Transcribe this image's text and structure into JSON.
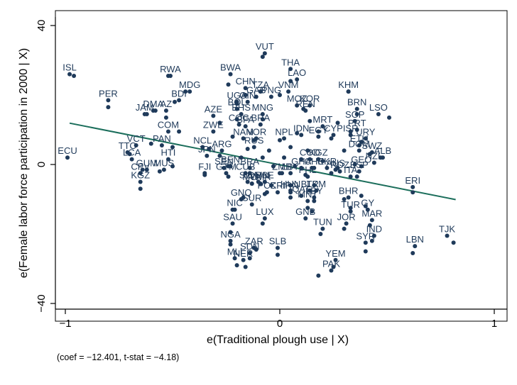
{
  "chart_data": {
    "type": "scatter",
    "xlabel": "e(Traditional plough use | X)",
    "ylabel": "e(Female labor force participation in 2000 | X)",
    "xlim": [
      -1.03,
      1.03
    ],
    "ylim": [
      -41,
      41
    ],
    "x_ticks": [
      {
        "v": -1,
        "label": "−1"
      },
      {
        "v": 0,
        "label": "0"
      },
      {
        "v": 1,
        "label": "1"
      }
    ],
    "y_ticks": [
      {
        "v": 40,
        "label": "40"
      },
      {
        "v": 0,
        "label": "0"
      },
      {
        "v": -40,
        "label": "−40"
      }
    ],
    "grid": false,
    "note": "(coef = −12.401, t-stat = −4.18)",
    "fit_line": {
      "x": [
        -0.98,
        0.82
      ],
      "y": [
        11.9,
        -10.1
      ]
    },
    "colors": {
      "points": "#1f3a5a",
      "fit": "#1b6e5b",
      "frame": "#000000"
    },
    "labeled_points": [
      {
        "code": "VUT",
        "x": -0.07,
        "y": 32
      },
      {
        "code": "THA",
        "x": 0.05,
        "y": 27.5
      },
      {
        "code": "LAO",
        "x": 0.08,
        "y": 24.5
      },
      {
        "code": "ISL",
        "x": -0.98,
        "y": 26
      },
      {
        "code": "RWA",
        "x": -0.51,
        "y": 25.5
      },
      {
        "code": "BWA",
        "x": -0.23,
        "y": 26
      },
      {
        "code": "KHM",
        "x": 0.32,
        "y": 21
      },
      {
        "code": "CHN",
        "x": -0.16,
        "y": 22
      },
      {
        "code": "TZA",
        "x": -0.09,
        "y": 21
      },
      {
        "code": "VNM",
        "x": 0.04,
        "y": 21
      },
      {
        "code": "MDG",
        "x": -0.42,
        "y": 21
      },
      {
        "code": "GAB",
        "x": -0.11,
        "y": 19.5
      },
      {
        "code": "PNG",
        "x": -0.04,
        "y": 19.5
      },
      {
        "code": "BDI",
        "x": -0.47,
        "y": 18.5
      },
      {
        "code": "PER",
        "x": -0.8,
        "y": 18.5
      },
      {
        "code": "UGA",
        "x": -0.2,
        "y": 18
      },
      {
        "code": "GIN",
        "x": -0.15,
        "y": 18
      },
      {
        "code": "MOZ",
        "x": 0.08,
        "y": 17
      },
      {
        "code": "KOR",
        "x": 0.14,
        "y": 17
      },
      {
        "code": "BRN",
        "x": 0.36,
        "y": 16
      },
      {
        "code": "DMA",
        "x": -0.59,
        "y": 15.5
      },
      {
        "code": "AZ",
        "x": -0.53,
        "y": 15.5
      },
      {
        "code": "JAM",
        "x": -0.63,
        "y": 14.5
      },
      {
        "code": "BOL",
        "x": -0.2,
        "y": 16
      },
      {
        "code": "BHS",
        "x": -0.18,
        "y": 14.5
      },
      {
        "code": "MNG",
        "x": -0.08,
        "y": 14.5
      },
      {
        "code": "REN",
        "x": 0.12,
        "y": 15.5
      },
      {
        "code": "AZE",
        "x": -0.31,
        "y": 14
      },
      {
        "code": "LSO",
        "x": 0.46,
        "y": 14.5
      },
      {
        "code": "SGP",
        "x": 0.35,
        "y": 12.5
      },
      {
        "code": "COG",
        "x": -0.19,
        "y": 11.5
      },
      {
        "code": "BRA",
        "x": -0.09,
        "y": 11.5
      },
      {
        "code": "MRT",
        "x": 0.2,
        "y": 11
      },
      {
        "code": "BFA",
        "x": -0.16,
        "y": 11
      },
      {
        "code": "ZWE",
        "x": -0.31,
        "y": 9.5
      },
      {
        "code": "PRT",
        "x": 0.36,
        "y": 10
      },
      {
        "code": "COM",
        "x": -0.52,
        "y": 9.5
      },
      {
        "code": "IDN",
        "x": 0.1,
        "y": 8.5
      },
      {
        "code": "EGY",
        "x": 0.18,
        "y": 8
      },
      {
        "code": "CYP",
        "x": 0.25,
        "y": 8.5
      },
      {
        "code": "ISR",
        "x": 0.33,
        "y": 8.5
      },
      {
        "code": "URY",
        "x": 0.4,
        "y": 7.5
      },
      {
        "code": "NAM",
        "x": -0.17,
        "y": 7.5
      },
      {
        "code": "NOR",
        "x": -0.11,
        "y": 7.5
      },
      {
        "code": "NPL",
        "x": 0.02,
        "y": 7.5
      },
      {
        "code": "ETH",
        "x": 0.37,
        "y": 5.5
      },
      {
        "code": "VCT",
        "x": -0.67,
        "y": 5.5
      },
      {
        "code": "PAN",
        "x": -0.55,
        "y": 5.5
      },
      {
        "code": "NCL",
        "x": -0.36,
        "y": 5
      },
      {
        "code": "RUS",
        "x": -0.12,
        "y": 5
      },
      {
        "code": "TTO",
        "x": -0.71,
        "y": 3.5
      },
      {
        "code": "ARG",
        "x": -0.27,
        "y": 4
      },
      {
        "code": "DOM",
        "x": 0.37,
        "y": 4
      },
      {
        "code": "SWZ",
        "x": 0.43,
        "y": 3.5
      },
      {
        "code": "JPN",
        "x": -0.34,
        "y": 2.5
      },
      {
        "code": "ALB",
        "x": 0.48,
        "y": 2
      },
      {
        "code": "ECU",
        "x": -0.99,
        "y": 2
      },
      {
        "code": "LCA",
        "x": -0.69,
        "y": 1.5
      },
      {
        "code": "HTI",
        "x": -0.52,
        "y": 1.5
      },
      {
        "code": "COD",
        "x": 0.14,
        "y": 1.5
      },
      {
        "code": "KGZ",
        "x": 0.18,
        "y": 1.5
      },
      {
        "code": "NZL",
        "x": 0.44,
        "y": 0.5
      },
      {
        "code": "BEN",
        "x": -0.23,
        "y": -0.5
      },
      {
        "code": "GEO",
        "x": 0.38,
        "y": -0.5
      },
      {
        "code": "BRA",
        "x": -0.14,
        "y": -1
      },
      {
        "code": "SEN",
        "x": -0.26,
        "y": -1
      },
      {
        "code": "GHA",
        "x": 0.1,
        "y": -1
      },
      {
        "code": "CHE",
        "x": 0.16,
        "y": -1
      },
      {
        "code": "UKR",
        "x": 0.22,
        "y": -1
      },
      {
        "code": "GUM",
        "x": -0.62,
        "y": -1.5
      },
      {
        "code": "MUS",
        "x": -0.54,
        "y": -1.5
      },
      {
        "code": "CPV",
        "x": -0.65,
        "y": -2.5
      },
      {
        "code": "AUS",
        "x": 0.26,
        "y": -1.5
      },
      {
        "code": "RDZ",
        "x": 0.28,
        "y": -2
      },
      {
        "code": "ESP",
        "x": 0.37,
        "y": -2
      },
      {
        "code": "CUB",
        "x": -0.16,
        "y": -2.5
      },
      {
        "code": "FJI",
        "x": -0.35,
        "y": -2.5
      },
      {
        "code": "ZMB",
        "x": 0.01,
        "y": -2.5
      },
      {
        "code": "LBY",
        "x": 0.05,
        "y": -2.5
      },
      {
        "code": "PHL",
        "x": 0.13,
        "y": -3.5
      },
      {
        "code": "ITA",
        "x": 0.33,
        "y": -3.5
      },
      {
        "code": "KGZ",
        "x": -0.65,
        "y": -5
      },
      {
        "code": "GTM",
        "x": -0.25,
        "y": -2.5
      },
      {
        "code": "SLV",
        "x": -0.15,
        "y": -5
      },
      {
        "code": "MWI",
        "x": -0.13,
        "y": -5.5
      },
      {
        "code": "CMR",
        "x": -0.09,
        "y": -5.5
      },
      {
        "code": "OMN",
        "x": -0.1,
        "y": -5
      },
      {
        "code": "PSE",
        "x": -0.07,
        "y": -5
      },
      {
        "code": "HUN",
        "x": 0.05,
        "y": -7.5
      },
      {
        "code": "BLR",
        "x": 0.14,
        "y": -7.5
      },
      {
        "code": "TKM",
        "x": 0.17,
        "y": -7.5
      },
      {
        "code": "BHR",
        "x": 0.32,
        "y": -9.5
      },
      {
        "code": "PCK",
        "x": -0.06,
        "y": -8
      },
      {
        "code": "CRI",
        "x": -0.01,
        "y": -8
      },
      {
        "code": "IRN",
        "x": 0.05,
        "y": -8
      },
      {
        "code": "QAT",
        "x": 0.1,
        "y": -9
      },
      {
        "code": "LBY",
        "x": 0.16,
        "y": -9.5
      },
      {
        "code": "GNQ",
        "x": -0.18,
        "y": -10
      },
      {
        "code": "MNT",
        "x": 0.13,
        "y": -10.5
      },
      {
        "code": "SUR",
        "x": -0.13,
        "y": -11.5
      },
      {
        "code": "NIC",
        "x": -0.21,
        "y": -13
      },
      {
        "code": "TUR",
        "x": 0.33,
        "y": -13.5
      },
      {
        "code": "GY",
        "x": 0.41,
        "y": -13
      },
      {
        "code": "LUX",
        "x": -0.07,
        "y": -15.5
      },
      {
        "code": "GNB",
        "x": 0.12,
        "y": -15.5
      },
      {
        "code": "MAR",
        "x": 0.43,
        "y": -16
      },
      {
        "code": "SAU",
        "x": -0.22,
        "y": -17
      },
      {
        "code": "JOR",
        "x": 0.31,
        "y": -17
      },
      {
        "code": "TUN",
        "x": 0.2,
        "y": -18.5
      },
      {
        "code": "IND",
        "x": 0.44,
        "y": -20.5
      },
      {
        "code": "TJK",
        "x": 0.78,
        "y": -20.5
      },
      {
        "code": "NGA",
        "x": -0.23,
        "y": -22
      },
      {
        "code": "SYR",
        "x": 0.4,
        "y": -22.5
      },
      {
        "code": "LBN",
        "x": 0.63,
        "y": -23.5
      },
      {
        "code": "ZAR",
        "x": -0.12,
        "y": -24
      },
      {
        "code": "SLB",
        "x": -0.01,
        "y": -24
      },
      {
        "code": "SDN",
        "x": -0.14,
        "y": -25.5
      },
      {
        "code": "MLI",
        "x": -0.21,
        "y": -27
      },
      {
        "code": "NER",
        "x": -0.17,
        "y": -27.5
      },
      {
        "code": "YEM",
        "x": 0.26,
        "y": -27.5
      },
      {
        "code": "PAK",
        "x": 0.24,
        "y": -30.5
      },
      {
        "code": "ERI",
        "x": 0.62,
        "y": -6.5
      }
    ],
    "unlabeled_points": [
      {
        "x": -0.96,
        "y": 25.5
      },
      {
        "x": -0.52,
        "y": 25.5
      },
      {
        "x": -0.24,
        "y": 23
      },
      {
        "x": -0.08,
        "y": 31
      },
      {
        "x": 0.05,
        "y": 24
      },
      {
        "x": 0.32,
        "y": 21
      },
      {
        "x": -0.44,
        "y": 21
      },
      {
        "x": -0.16,
        "y": 20
      },
      {
        "x": 0.0,
        "y": 20
      },
      {
        "x": -0.49,
        "y": 18
      },
      {
        "x": -0.8,
        "y": 16.5
      },
      {
        "x": -0.2,
        "y": 17.5
      },
      {
        "x": 0.11,
        "y": 16
      },
      {
        "x": -0.58,
        "y": 15.5
      },
      {
        "x": -0.53,
        "y": 13.5
      },
      {
        "x": -0.62,
        "y": 14.5
      },
      {
        "x": 0.36,
        "y": 14.5
      },
      {
        "x": 0.51,
        "y": 13.5
      },
      {
        "x": -0.2,
        "y": 13
      },
      {
        "x": -0.08,
        "y": 13
      },
      {
        "x": 0.27,
        "y": 12
      },
      {
        "x": 0.14,
        "y": 12.5
      },
      {
        "x": -0.28,
        "y": 12
      },
      {
        "x": 0.33,
        "y": 9.5
      },
      {
        "x": -0.47,
        "y": 9.5
      },
      {
        "x": 0.18,
        "y": 9.5
      },
      {
        "x": 0.08,
        "y": 9
      },
      {
        "x": -0.22,
        "y": 8
      },
      {
        "x": -0.12,
        "y": 7
      },
      {
        "x": 0.0,
        "y": 7
      },
      {
        "x": 0.24,
        "y": 7.5
      },
      {
        "x": 0.38,
        "y": 6.5
      },
      {
        "x": -0.6,
        "y": 6
      },
      {
        "x": -0.5,
        "y": 5
      },
      {
        "x": -0.33,
        "y": 4.5
      },
      {
        "x": -0.15,
        "y": 4.5
      },
      {
        "x": -0.05,
        "y": 4
      },
      {
        "x": 0.05,
        "y": 5
      },
      {
        "x": 0.13,
        "y": 4
      },
      {
        "x": 0.3,
        "y": 4
      },
      {
        "x": 0.42,
        "y": 3
      },
      {
        "x": -0.7,
        "y": 3
      },
      {
        "x": -0.28,
        "y": 2.5
      },
      {
        "x": -0.18,
        "y": 2
      },
      {
        "x": -0.08,
        "y": 2
      },
      {
        "x": 0.02,
        "y": 2
      },
      {
        "x": 0.1,
        "y": 1.5
      },
      {
        "x": 0.2,
        "y": 1
      },
      {
        "x": 0.47,
        "y": 2
      },
      {
        "x": -0.5,
        "y": -0.5
      },
      {
        "x": 0.35,
        "y": 0
      },
      {
        "x": -0.24,
        "y": -0.5
      },
      {
        "x": -0.03,
        "y": -0.5
      },
      {
        "x": 0.07,
        "y": -0.5
      },
      {
        "x": 0.15,
        "y": -1
      },
      {
        "x": 0.27,
        "y": -1
      },
      {
        "x": -0.64,
        "y": -1.5
      },
      {
        "x": -0.56,
        "y": -2
      },
      {
        "x": -0.35,
        "y": -3
      },
      {
        "x": -0.14,
        "y": -2.5
      },
      {
        "x": 0.0,
        "y": -2.5
      },
      {
        "x": 0.12,
        "y": -3
      },
      {
        "x": 0.24,
        "y": -2.5
      },
      {
        "x": 0.36,
        "y": -3.5
      },
      {
        "x": -0.65,
        "y": -7
      },
      {
        "x": -0.24,
        "y": -3.5
      },
      {
        "x": -0.13,
        "y": -5.5
      },
      {
        "x": -0.04,
        "y": -6
      },
      {
        "x": 0.05,
        "y": -6
      },
      {
        "x": 0.16,
        "y": -6
      },
      {
        "x": 0.62,
        "y": -8
      },
      {
        "x": -0.07,
        "y": -8.5
      },
      {
        "x": 0.05,
        "y": -9.5
      },
      {
        "x": 0.16,
        "y": -10.5
      },
      {
        "x": 0.3,
        "y": -10
      },
      {
        "x": -0.17,
        "y": -9.5
      },
      {
        "x": 0.13,
        "y": -12.5
      },
      {
        "x": -0.22,
        "y": -13
      },
      {
        "x": 0.33,
        "y": -12.5
      },
      {
        "x": 0.4,
        "y": -12
      },
      {
        "x": -0.08,
        "y": -17
      },
      {
        "x": 0.15,
        "y": -13.5
      },
      {
        "x": 0.42,
        "y": -17.5
      },
      {
        "x": -0.23,
        "y": -19.5
      },
      {
        "x": 0.3,
        "y": -18.5
      },
      {
        "x": 0.19,
        "y": -20
      },
      {
        "x": 0.43,
        "y": -22
      },
      {
        "x": 0.81,
        "y": -22.5
      },
      {
        "x": -0.23,
        "y": -23
      },
      {
        "x": 0.4,
        "y": -25
      },
      {
        "x": 0.62,
        "y": -25.5
      },
      {
        "x": -0.11,
        "y": -24.5
      },
      {
        "x": -0.01,
        "y": -26
      },
      {
        "x": -0.14,
        "y": -27
      },
      {
        "x": -0.2,
        "y": -29
      },
      {
        "x": -0.16,
        "y": -29.5
      },
      {
        "x": 0.25,
        "y": -29.5
      },
      {
        "x": 0.18,
        "y": -32
      },
      {
        "x": 0.38,
        "y": -9
      }
    ]
  }
}
